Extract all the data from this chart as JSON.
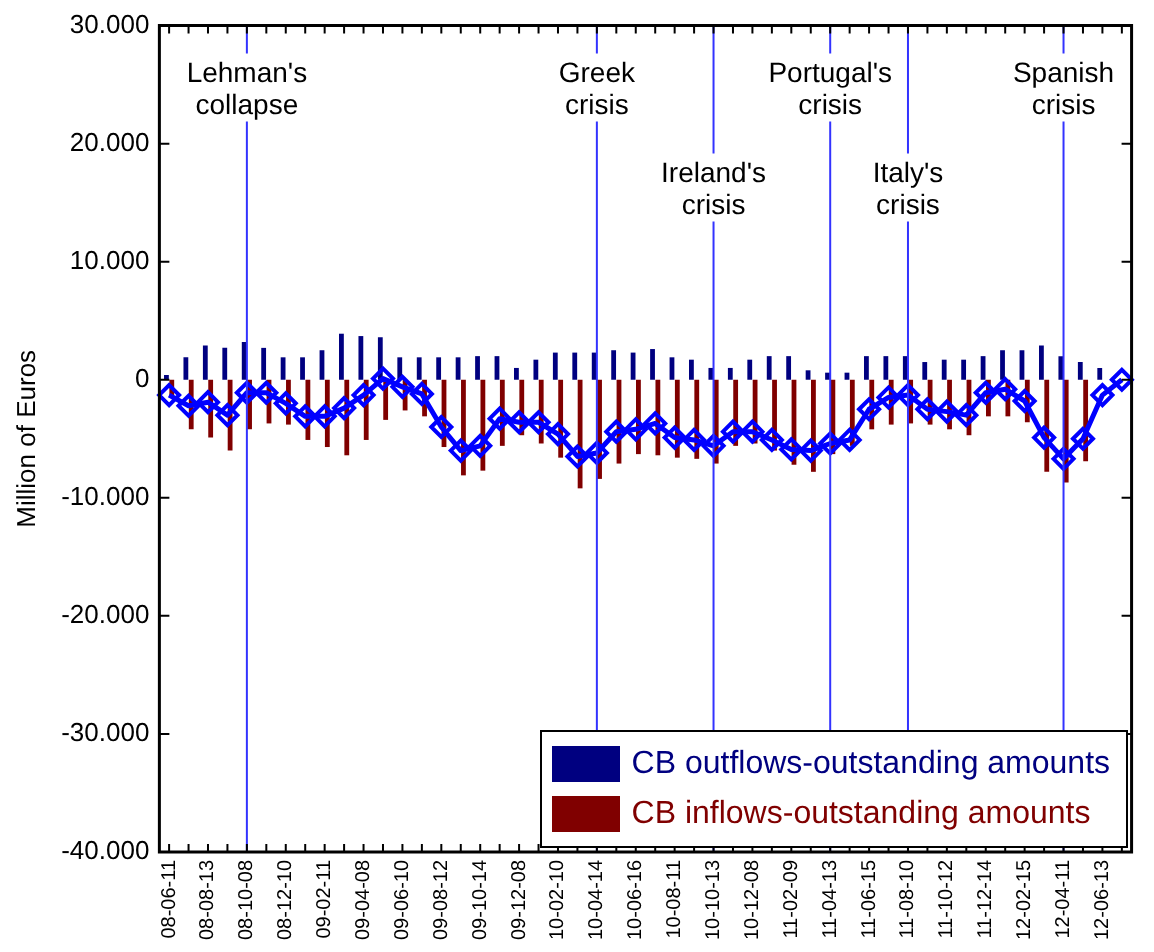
{
  "chart_data": {
    "type": "bar",
    "ylabel": "Million of Euros",
    "categories": [
      "08-06-11",
      null,
      "08-08-13",
      null,
      "08-10-08",
      null,
      "08-12-10",
      null,
      "09-02-11",
      null,
      "09-04-08",
      null,
      "09-06-10",
      null,
      "09-08-12",
      null,
      "09-10-14",
      null,
      "09-12-08",
      null,
      "10-02-10",
      null,
      "10-04-14",
      null,
      "10-06-16",
      null,
      "10-08-11",
      null,
      "10-10-13",
      null,
      "10-12-08",
      null,
      "11-02-09",
      null,
      "11-04-13",
      null,
      "11-06-15",
      null,
      "11-08-10",
      null,
      "11-10-12",
      null,
      "11-12-14",
      null,
      "12-02-15",
      null,
      "12-04-11",
      null,
      "12-06-13",
      null
    ],
    "series": [
      {
        "name": "CB outflows-outstanding amounts",
        "color": "#000080",
        "values": [
          400,
          1900,
          2900,
          2700,
          3200,
          2700,
          1900,
          1900,
          2500,
          3900,
          3700,
          3600,
          1900,
          1900,
          1900,
          1900,
          2000,
          2000,
          1000,
          1700,
          2300,
          2300,
          2300,
          2500,
          2300,
          2600,
          1900,
          1700,
          1000,
          1000,
          1700,
          2000,
          2000,
          800,
          600,
          600,
          2000,
          2000,
          2000,
          1500,
          1700,
          1700,
          2000,
          2500,
          2500,
          2900,
          2000,
          1500,
          1000,
          null
        ]
      },
      {
        "name": "CB inflows-outstanding amounts",
        "color": "#800000",
        "values": [
          -1500,
          -4200,
          -4900,
          -6000,
          -4200,
          -3700,
          -3800,
          -5100,
          -5700,
          -6400,
          -5100,
          -3400,
          -2600,
          -3100,
          -5700,
          -8100,
          -7700,
          -5600,
          -4700,
          -5400,
          -6600,
          -9200,
          -8400,
          -7100,
          -6300,
          -6400,
          -6600,
          -6700,
          -7100,
          -5600,
          -5400,
          -6000,
          -7200,
          -7800,
          -6300,
          -5600,
          -4200,
          -3800,
          -3700,
          -3800,
          -4200,
          -4700,
          -3100,
          -3100,
          -3600,
          -7800,
          -8700,
          -6900,
          null,
          null
        ]
      },
      {
        "type": "line",
        "color": "#0000ff",
        "values": [
          -1300,
          -2200,
          -1900,
          -3000,
          -1100,
          -1100,
          -2000,
          -3100,
          -3100,
          -2400,
          -1300,
          100,
          -600,
          -1200,
          -4000,
          -6000,
          -5600,
          -3300,
          -3600,
          -3600,
          -4600,
          -6500,
          -6200,
          -4400,
          -4200,
          -3700,
          -4900,
          -5100,
          -5600,
          -4400,
          -4400,
          -5100,
          -5900,
          -6000,
          -5400,
          -5100,
          -2500,
          -1500,
          -1300,
          -2500,
          -2700,
          -3000,
          -1100,
          -800,
          -1800,
          -4900,
          -6700,
          -5000,
          -1300,
          0
        ]
      }
    ],
    "ylim": [
      -40000,
      30000
    ],
    "yticks": [
      {
        "value": -40000,
        "label": "-40.000"
      },
      {
        "value": -30000,
        "label": "-30.000"
      },
      {
        "value": -20000,
        "label": "-20.000"
      },
      {
        "value": -10000,
        "label": "-10.000"
      },
      0,
      {
        "value": 10000,
        "label": "10.000"
      },
      {
        "value": 20000,
        "label": "20.000"
      },
      {
        "value": 30000,
        "label": "30.000"
      }
    ],
    "ref_lines": [
      {
        "axis": "x",
        "value": "08-10-08",
        "label": "Lehman's collapse",
        "color": "#3333ff"
      },
      {
        "axis": "x",
        "value": "10-04-14",
        "label": "Greek crisis",
        "color": "#3333ff"
      },
      {
        "axis": "x",
        "value": "10-10-13",
        "label": "Ireland's crisis",
        "color": "#3333ff"
      },
      {
        "axis": "x",
        "value": "11-04-13",
        "label": "Portugal's crisis",
        "color": "#3333ff"
      },
      {
        "axis": "x",
        "value": "11-08-10",
        "label": "Italy's crisis",
        "color": "#3333ff"
      },
      {
        "axis": "x",
        "value": "12-04-11",
        "label": "Spanish crisis",
        "color": "#3333ff"
      }
    ],
    "marker": "diamond",
    "grid": false,
    "legend": "bottom right"
  }
}
